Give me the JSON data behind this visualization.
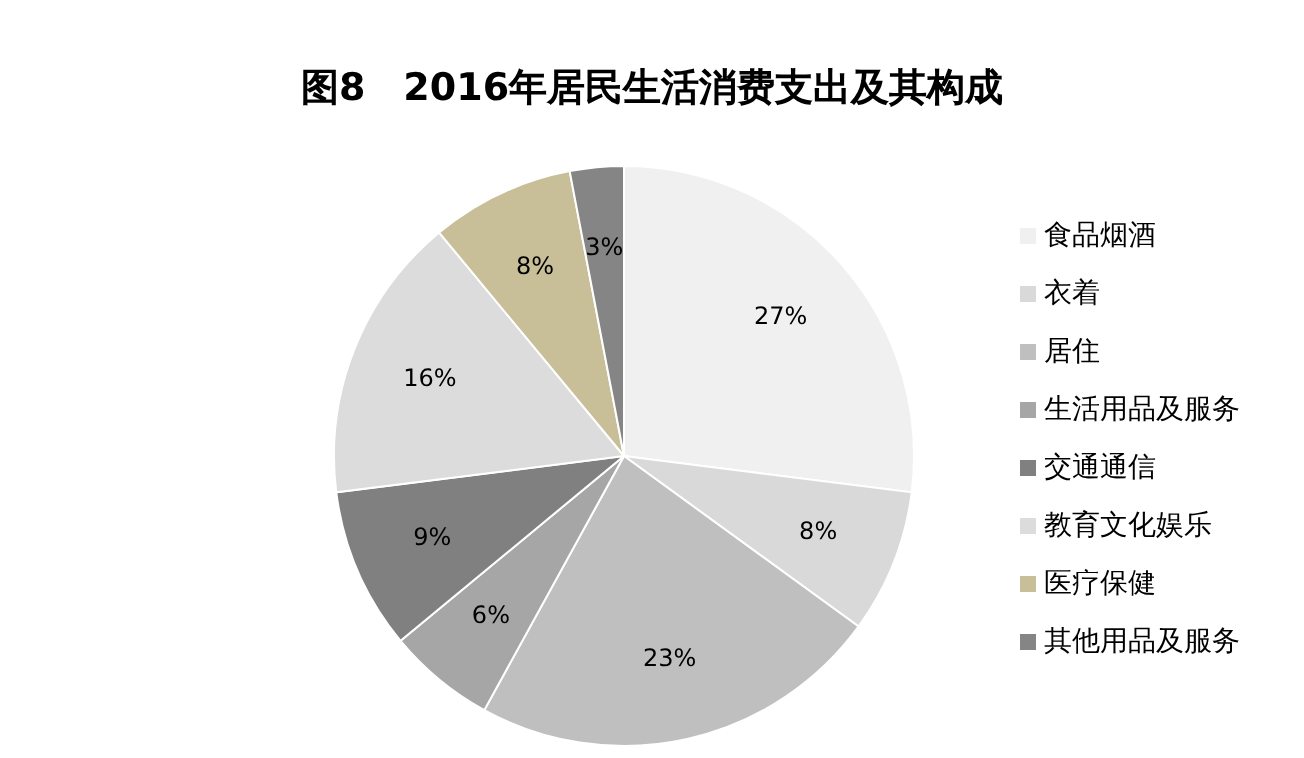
{
  "chart_data": {
    "type": "pie",
    "title": "图8　2016年居民生活消费支出及其构成",
    "categories": [
      "食品烟酒",
      "衣着",
      "居住",
      "生活用品及服务",
      "交通通信",
      "教育文化娱乐",
      "医疗保健",
      "其他用品及服务"
    ],
    "values": [
      27,
      8,
      23,
      6,
      9,
      16,
      8,
      3
    ],
    "colors": [
      "#f0f0f0",
      "#d9d9d9",
      "#bfbfbf",
      "#a6a6a6",
      "#808080",
      "#dcdcdc",
      "#c8bf99",
      "#858585"
    ],
    "value_labels": [
      "27%",
      "8%",
      "23%",
      "6%",
      "9%",
      "16%",
      "8%",
      "3%"
    ],
    "legend": "right"
  }
}
